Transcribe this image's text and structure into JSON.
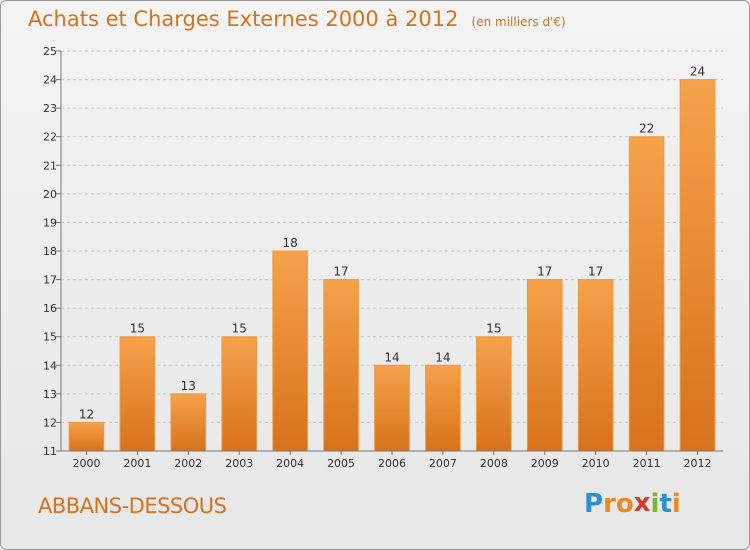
{
  "title": "Achats et Charges Externes 2000 à 2012",
  "subtitle": "(en milliers d'€)",
  "place": "ABBANS-DESSOUS",
  "logo": {
    "letters": [
      "P",
      "r",
      "o",
      "x",
      "i",
      "t",
      "i"
    ],
    "colors": [
      "#2e8fd1",
      "#e98b1f",
      "#e98b1f",
      "#d33b2a",
      "#7bb82a",
      "#2e8fd1",
      "#e98b1f"
    ]
  },
  "colors": {
    "bar_light": "#f5a24a",
    "bar_dark": "#d8721c",
    "accent": "#d5731c"
  },
  "chart_data": {
    "type": "bar",
    "categories": [
      "2000",
      "2001",
      "2002",
      "2003",
      "2004",
      "2005",
      "2006",
      "2007",
      "2008",
      "2009",
      "2010",
      "2011",
      "2012"
    ],
    "values": [
      12,
      15,
      13,
      15,
      18,
      17,
      14,
      14,
      15,
      17,
      17,
      22,
      24
    ],
    "ylim": [
      11,
      25
    ],
    "yticks": [
      "11",
      "12",
      "13",
      "14",
      "15",
      "16",
      "17",
      "18",
      "19",
      "20",
      "21",
      "22",
      "23",
      "24",
      "25"
    ],
    "grid": true,
    "legend": "none"
  }
}
